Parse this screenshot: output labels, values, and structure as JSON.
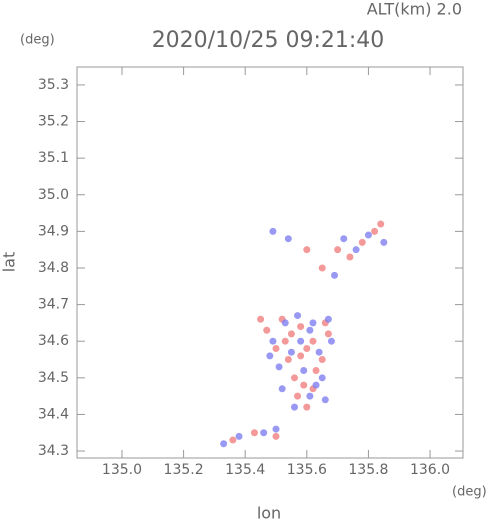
{
  "chart_data": {
    "type": "scatter",
    "title": "2020/10/25 09:21:40",
    "subtitle": "ALT(km) 2.0",
    "y_unit": "(deg)",
    "x_unit": "(deg)",
    "xlabel": "lon",
    "ylabel": "lat",
    "xlim": [
      134.854,
      136.107
    ],
    "ylim": [
      34.281,
      35.349
    ],
    "xticks": [
      {
        "value": 135,
        "label": "135.0"
      },
      135.2,
      135.4,
      135.6,
      135.8,
      {
        "value": 136,
        "label": "136.0"
      }
    ],
    "yticks": [
      34.3,
      34.4,
      34.5,
      34.6,
      34.7,
      34.8,
      34.9,
      {
        "value": 35,
        "label": "35.0"
      },
      35.1,
      35.2,
      35.3
    ],
    "series": [
      {
        "color": "#f08080",
        "x": [
          135.52,
          135.55,
          135.58,
          135.6,
          135.62,
          135.65,
          135.5,
          135.47,
          135.56,
          135.59,
          135.63,
          135.57,
          135.54,
          135.6,
          135.66,
          135.45,
          135.7,
          135.78,
          135.82,
          135.84,
          135.74,
          135.65,
          135.6,
          135.36,
          135.43,
          135.5,
          135.67,
          135.53,
          135.58,
          135.62
        ],
        "values": [
          34.66,
          34.62,
          34.64,
          34.58,
          34.6,
          34.55,
          34.58,
          34.63,
          34.5,
          34.48,
          34.52,
          34.45,
          34.55,
          34.42,
          34.65,
          34.66,
          34.85,
          34.87,
          34.9,
          34.92,
          34.83,
          34.8,
          34.85,
          34.33,
          34.35,
          34.34,
          34.62,
          34.6,
          34.56,
          34.47
        ]
      },
      {
        "color": "#8080f0",
        "x": [
          135.49,
          135.53,
          135.57,
          135.61,
          135.64,
          135.68,
          135.51,
          135.55,
          135.59,
          135.63,
          135.66,
          135.48,
          135.56,
          135.61,
          135.65,
          135.52,
          135.58,
          135.62,
          135.67,
          135.72,
          135.76,
          135.8,
          135.85,
          135.69,
          135.49,
          135.54,
          135.38,
          135.46,
          135.5,
          135.33
        ],
        "values": [
          34.6,
          34.65,
          34.67,
          34.63,
          34.57,
          34.6,
          34.53,
          34.57,
          34.52,
          34.48,
          34.44,
          34.56,
          34.42,
          34.45,
          34.5,
          34.47,
          34.6,
          34.65,
          34.66,
          34.88,
          34.85,
          34.89,
          34.87,
          34.78,
          34.9,
          34.88,
          34.34,
          34.35,
          34.36,
          34.32
        ]
      }
    ]
  }
}
